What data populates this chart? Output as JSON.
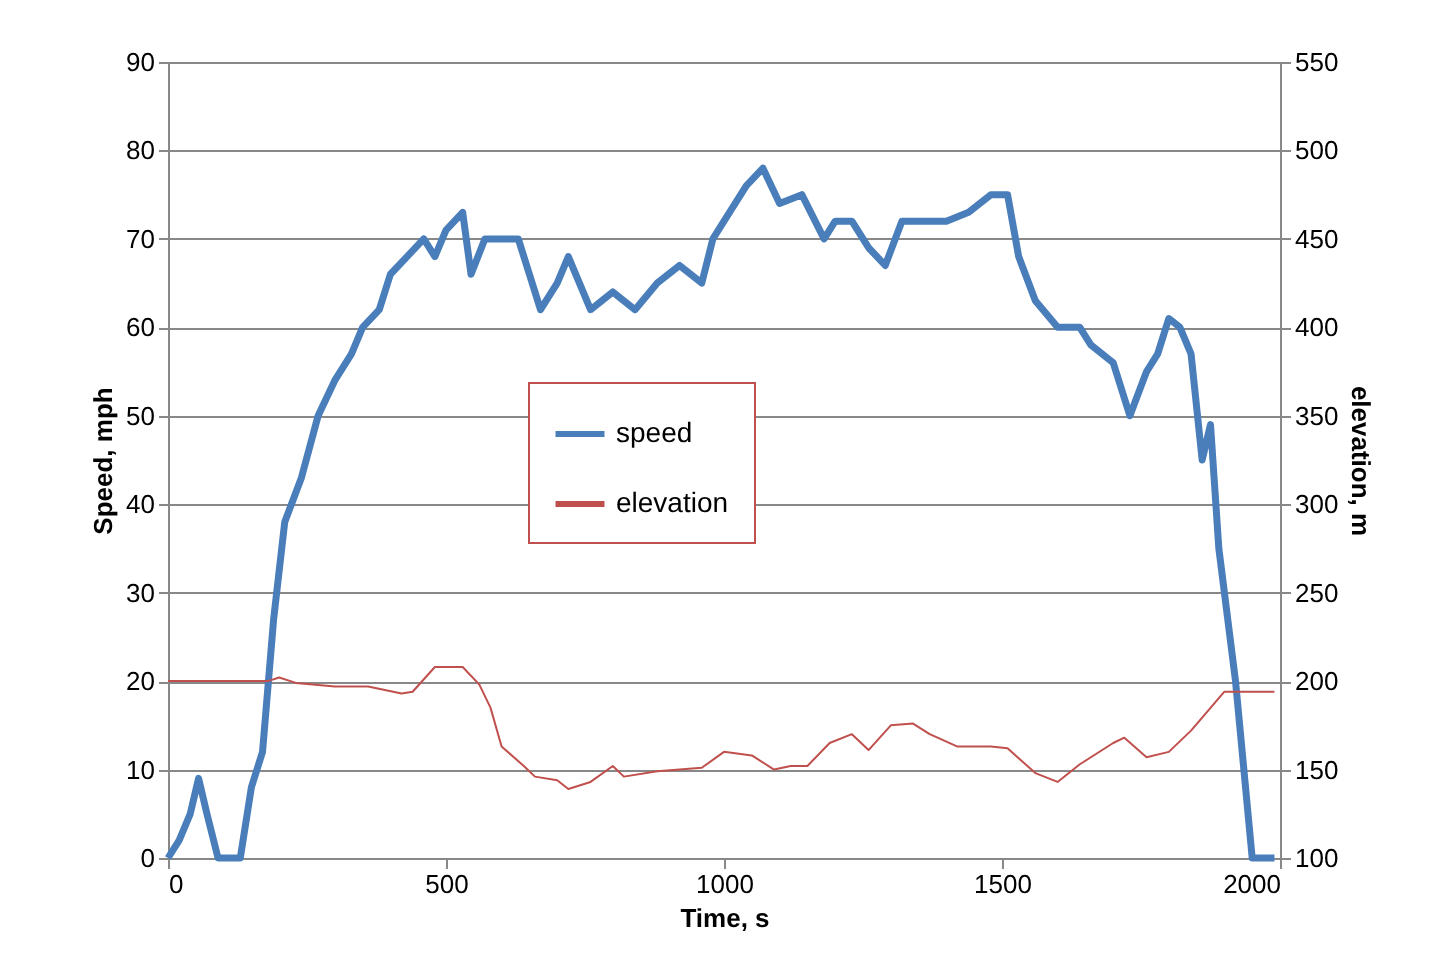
{
  "chart_data": {
    "type": "line",
    "xlabel": "Time, s",
    "ylabel": "Speed, mph",
    "y2label": "elevation, m",
    "xlim": [
      0,
      2000
    ],
    "xticks": [
      0,
      500,
      1000,
      1500,
      2000
    ],
    "ylim": [
      0,
      90
    ],
    "yticks": [
      0,
      10,
      20,
      30,
      40,
      50,
      60,
      70,
      80,
      90
    ],
    "y2lim": [
      100,
      550
    ],
    "y2ticks": [
      100,
      150,
      200,
      250,
      300,
      350,
      400,
      450,
      500,
      550
    ],
    "grid": "y",
    "legend": "center",
    "line_style": "solid",
    "marker": "none",
    "series": [
      {
        "name": "speed",
        "color": "#4a7ebb",
        "x": [
          0,
          20,
          40,
          55,
          70,
          90,
          130,
          150,
          170,
          190,
          210,
          240,
          270,
          300,
          330,
          350,
          380,
          400,
          430,
          460,
          480,
          500,
          530,
          545,
          570,
          600,
          630,
          650,
          670,
          700,
          720,
          760,
          800,
          840,
          880,
          920,
          960,
          980,
          1000,
          1040,
          1070,
          1100,
          1140,
          1180,
          1200,
          1230,
          1260,
          1290,
          1320,
          1360,
          1400,
          1440,
          1480,
          1510,
          1530,
          1560,
          1600,
          1640,
          1660,
          1700,
          1730,
          1760,
          1780,
          1800,
          1820,
          1840,
          1860,
          1875,
          1890,
          1920,
          1950,
          1990
        ],
        "values": [
          0,
          2,
          5,
          9,
          5,
          0,
          0,
          8,
          12,
          27,
          38,
          43,
          50,
          54,
          57,
          60,
          62,
          66,
          68,
          70,
          68,
          71,
          73,
          66,
          70,
          70,
          70,
          66,
          62,
          65,
          68,
          62,
          64,
          62,
          65,
          67,
          65,
          70,
          72,
          76,
          78,
          74,
          75,
          70,
          72,
          72,
          69,
          67,
          72,
          72,
          72,
          73,
          75,
          75,
          68,
          63,
          60,
          60,
          58,
          56,
          50,
          55,
          57,
          61,
          60,
          57,
          45,
          49,
          35,
          20,
          0,
          0
        ]
      },
      {
        "name": "elevation",
        "color": "#c0504d",
        "axis": "y2",
        "x": [
          0,
          180,
          200,
          230,
          300,
          360,
          420,
          440,
          480,
          530,
          560,
          580,
          600,
          640,
          660,
          700,
          720,
          760,
          800,
          820,
          880,
          960,
          1000,
          1050,
          1090,
          1120,
          1150,
          1190,
          1230,
          1260,
          1300,
          1340,
          1370,
          1420,
          1480,
          1510,
          1560,
          1600,
          1640,
          1700,
          1720,
          1760,
          1800,
          1840,
          1900,
          1990
        ],
        "values": [
          200,
          200,
          202,
          199,
          197,
          197,
          193,
          194,
          208,
          208,
          198,
          185,
          163,
          152,
          146,
          144,
          139,
          143,
          152,
          146,
          149,
          151,
          160,
          158,
          150,
          152,
          152,
          165,
          170,
          161,
          175,
          176,
          170,
          163,
          163,
          162,
          148,
          143,
          153,
          165,
          168,
          157,
          160,
          172,
          194,
          194
        ]
      }
    ]
  }
}
